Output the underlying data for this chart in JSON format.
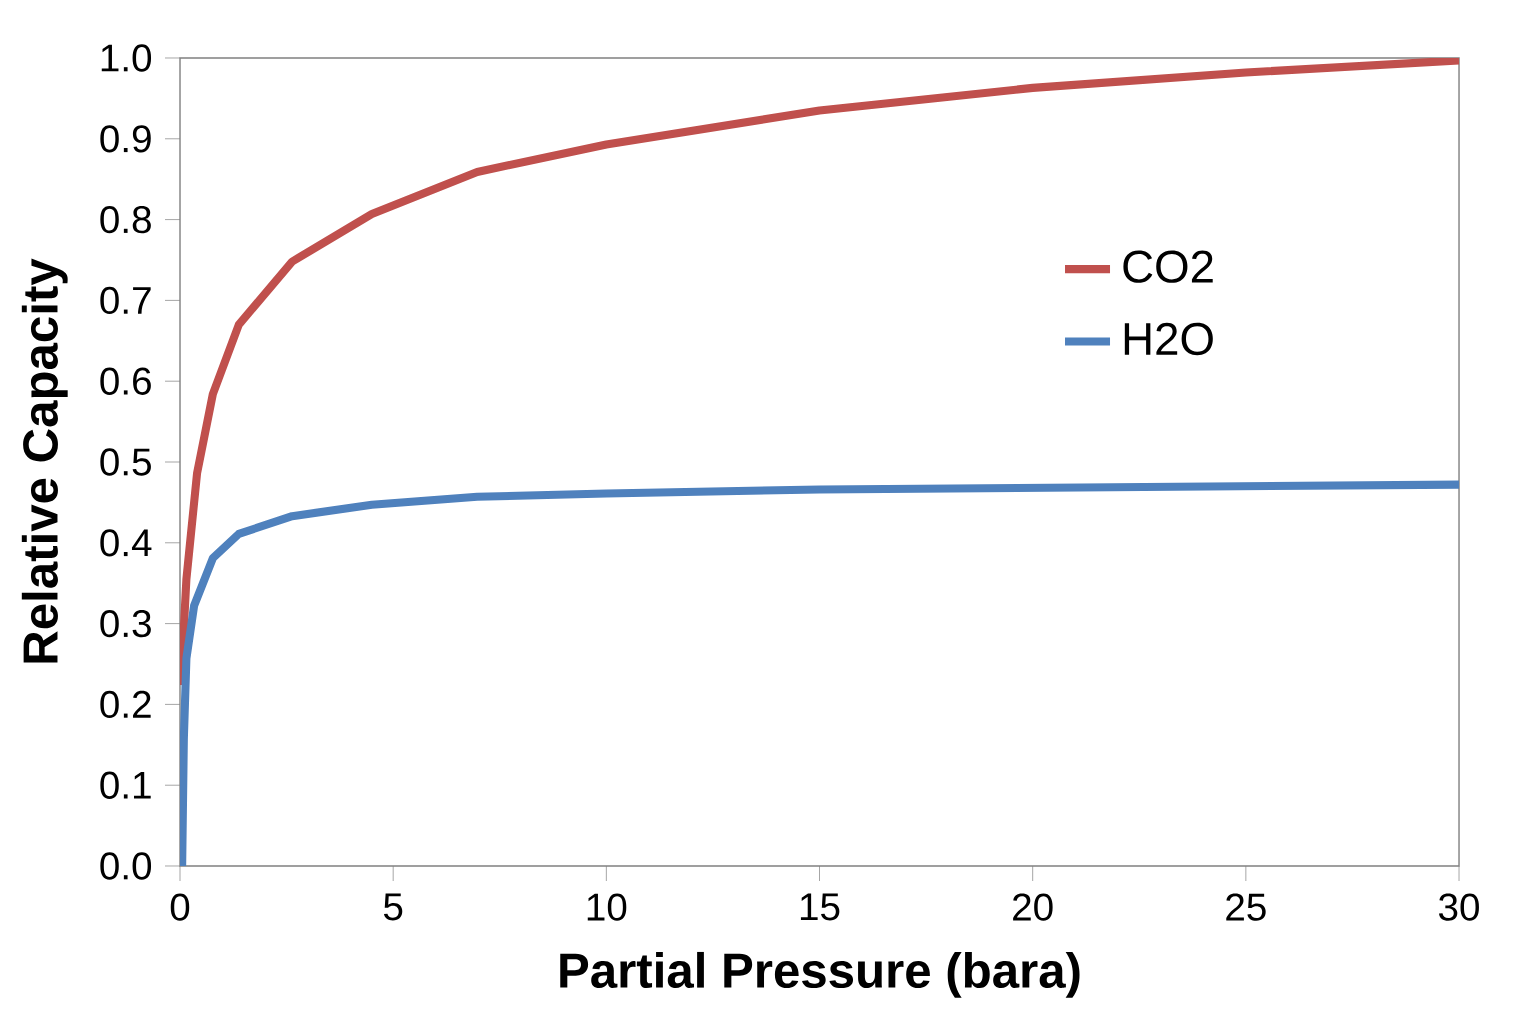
{
  "chart_data": {
    "type": "line",
    "xlabel": "Partial Pressure (bara)",
    "ylabel": "Relative Capacity",
    "xlim": [
      0,
      30
    ],
    "xticks": [
      0,
      5,
      10,
      15,
      20,
      25,
      30
    ],
    "ylim": [
      0,
      1.0
    ],
    "yticks": [
      {
        "value": 0,
        "label": "0.0"
      },
      0.1,
      0.2,
      0.3,
      0.4,
      0.5,
      0.6,
      0.7,
      0.8,
      0.9,
      {
        "value": 1.0,
        "label": "1.0"
      }
    ],
    "grid": false,
    "legend": "right",
    "marker": "none",
    "line_style": "solid",
    "series": [
      {
        "name": "CO2",
        "color": "#c0504d",
        "x": [
          0.02,
          0.15,
          0.4,
          0.77,
          1.38,
          2.63,
          4.5,
          6.97,
          10,
          15,
          20,
          25,
          30
        ],
        "values": [
          0.224,
          0.355,
          0.486,
          0.584,
          0.67,
          0.748,
          0.807,
          0.859,
          0.893,
          0.935,
          0.963,
          0.982,
          0.997
        ]
      },
      {
        "name": "H2O",
        "color": "#4f81bd",
        "x": [
          0.05,
          0.09,
          0.15,
          0.33,
          0.77,
          1.38,
          2.63,
          4.5,
          6.97,
          10,
          15,
          20,
          25,
          30
        ],
        "values": [
          0,
          0.158,
          0.257,
          0.322,
          0.381,
          0.411,
          0.433,
          0.447,
          0.457,
          0.461,
          0.466,
          0.468,
          0.47,
          0.472
        ]
      }
    ]
  }
}
